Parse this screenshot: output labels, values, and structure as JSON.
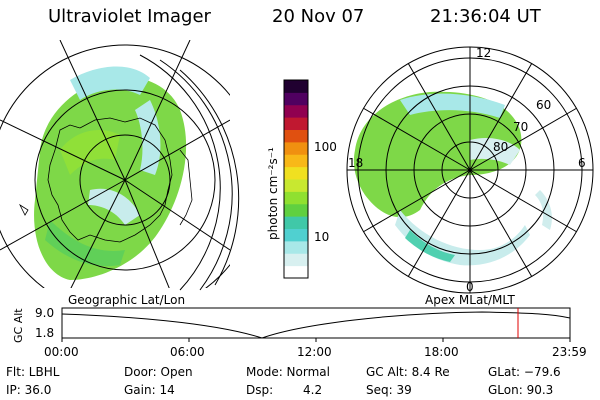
{
  "header": {
    "title": "Ultraviolet Imager",
    "date": "20 Nov 07",
    "time": "21:36:04 UT"
  },
  "left_map": {
    "label": "Geographic Lat/Lon"
  },
  "right_map": {
    "label": "Apex MLat/MLT",
    "mlt_labels": [
      "12",
      "18",
      "6",
      "0"
    ],
    "mlat_labels": [
      "60",
      "70",
      "80"
    ]
  },
  "colorbar": {
    "unit_label": "photon cm⁻²s⁻¹",
    "ticks": [
      "100",
      "10"
    ],
    "colors": [
      "#ffffff",
      "#d8f0f0",
      "#a8e8e8",
      "#50d0d0",
      "#40c8a8",
      "#60d040",
      "#90e030",
      "#c8e830",
      "#f0e020",
      "#f8b818",
      "#f09010",
      "#e05010",
      "#c01830",
      "#900050",
      "#500060",
      "#200030"
    ]
  },
  "altitude_panel": {
    "ylabel": "GC Alt",
    "ytick_top": "9.0",
    "ytick_bottom": "1.8",
    "xticks": [
      "00:00",
      "06:00",
      "12:00",
      "18:00",
      "23:59"
    ],
    "current_time_marker_color": "#e00000"
  },
  "info": {
    "filter": "Flt: LBHL",
    "door": "Door: Open",
    "mode": "Mode: Normal",
    "gc_alt": "GC Alt: 8.4 Re",
    "glat": "GLat: −79.6",
    "ip": "IP: 36.0",
    "gain": "Gain: 14",
    "dsp_label": "Dsp:",
    "dsp_value": "4.2",
    "seq": "Seq: 39",
    "glon": "GLon:  90.3"
  }
}
